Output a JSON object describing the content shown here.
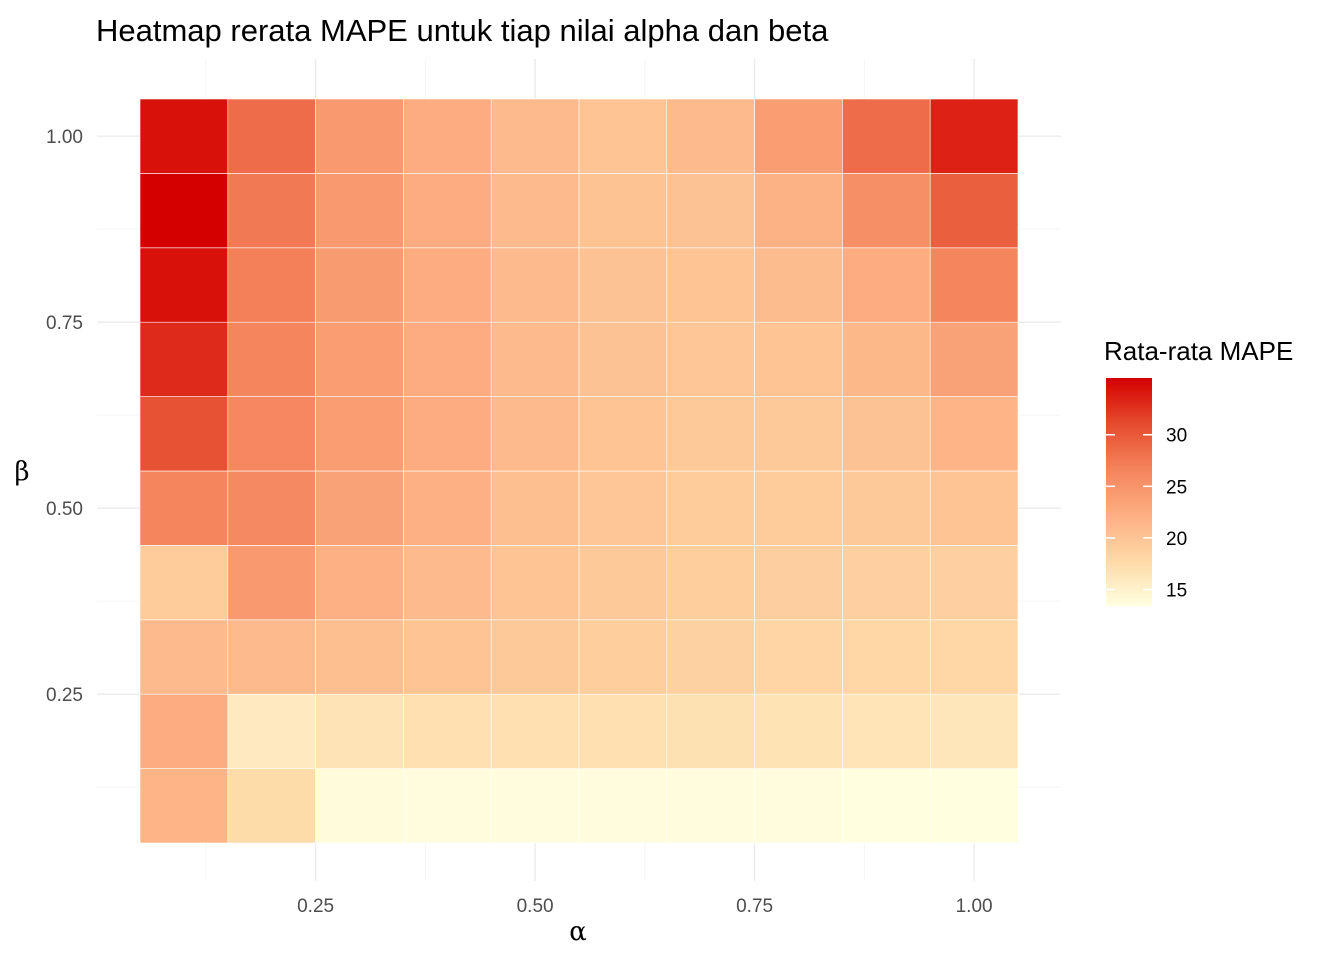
{
  "chart_data": {
    "type": "heatmap",
    "title": "Heatmap rerata MAPE untuk tiap nilai alpha dan beta",
    "xlabel": "α",
    "ylabel": "β",
    "x": [
      0.1,
      0.2,
      0.3,
      0.4,
      0.5,
      0.6,
      0.7,
      0.8,
      0.9,
      1.0
    ],
    "y": [
      0.1,
      0.2,
      0.3,
      0.4,
      0.5,
      0.6,
      0.7,
      0.8,
      0.9,
      1.0
    ],
    "x_ticks": [
      "0.25",
      "0.50",
      "0.75",
      "1.00"
    ],
    "x_tick_values": [
      0.25,
      0.5,
      0.75,
      1.0
    ],
    "y_ticks": [
      "0.25",
      "0.50",
      "0.75",
      "1.00"
    ],
    "y_tick_values": [
      0.25,
      0.5,
      0.75,
      1.0
    ],
    "xlim": [
      0.05,
      1.05
    ],
    "ylim": [
      0.05,
      1.05
    ],
    "values": [
      [
        21.5,
        17.5,
        13.8,
        13.6,
        13.6,
        13.6,
        13.6,
        13.6,
        13.5,
        13.4
      ],
      [
        22.5,
        15.8,
        16.6,
        17.0,
        17.0,
        17.0,
        16.9,
        16.7,
        16.5,
        16.3
      ],
      [
        21.0,
        21.0,
        20.5,
        20.0,
        19.5,
        19.0,
        18.6,
        18.2,
        18.0,
        18.0
      ],
      [
        19.2,
        24.5,
        22.0,
        21.0,
        20.0,
        19.5,
        19.0,
        18.8,
        18.7,
        18.7
      ],
      [
        26.5,
        26.0,
        23.5,
        22.0,
        20.5,
        19.8,
        19.3,
        19.2,
        19.5,
        20.0
      ],
      [
        30.5,
        26.2,
        24.0,
        22.5,
        21.0,
        20.0,
        19.5,
        19.5,
        20.2,
        21.5
      ],
      [
        33.0,
        26.5,
        24.0,
        22.5,
        21.0,
        20.2,
        19.8,
        20.0,
        21.2,
        23.5
      ],
      [
        34.5,
        27.0,
        24.2,
        22.5,
        21.0,
        20.2,
        20.0,
        20.8,
        22.5,
        26.5
      ],
      [
        35.5,
        27.5,
        24.5,
        22.5,
        20.9,
        20.1,
        20.2,
        21.8,
        25.5,
        29.5
      ],
      [
        34.5,
        28.5,
        24.5,
        22.5,
        21.0,
        20.0,
        21.0,
        24.0,
        28.5,
        33.5
      ]
    ],
    "colorbar": {
      "title": "Rata-rata MAPE",
      "min": 13.4,
      "max": 35.5,
      "ticks": [
        "30",
        "25",
        "20",
        "15"
      ],
      "tick_values": [
        30,
        25,
        20,
        15
      ],
      "low_color": "#ffffe0",
      "mid_color": "#fc8d59",
      "high_color": "#d7191c",
      "colors": [
        "#ffffe0",
        "#fed9a6",
        "#fdae82",
        "#f4845c",
        "#e54b2e",
        "#d40000"
      ]
    },
    "grid": true,
    "legend": "right"
  }
}
